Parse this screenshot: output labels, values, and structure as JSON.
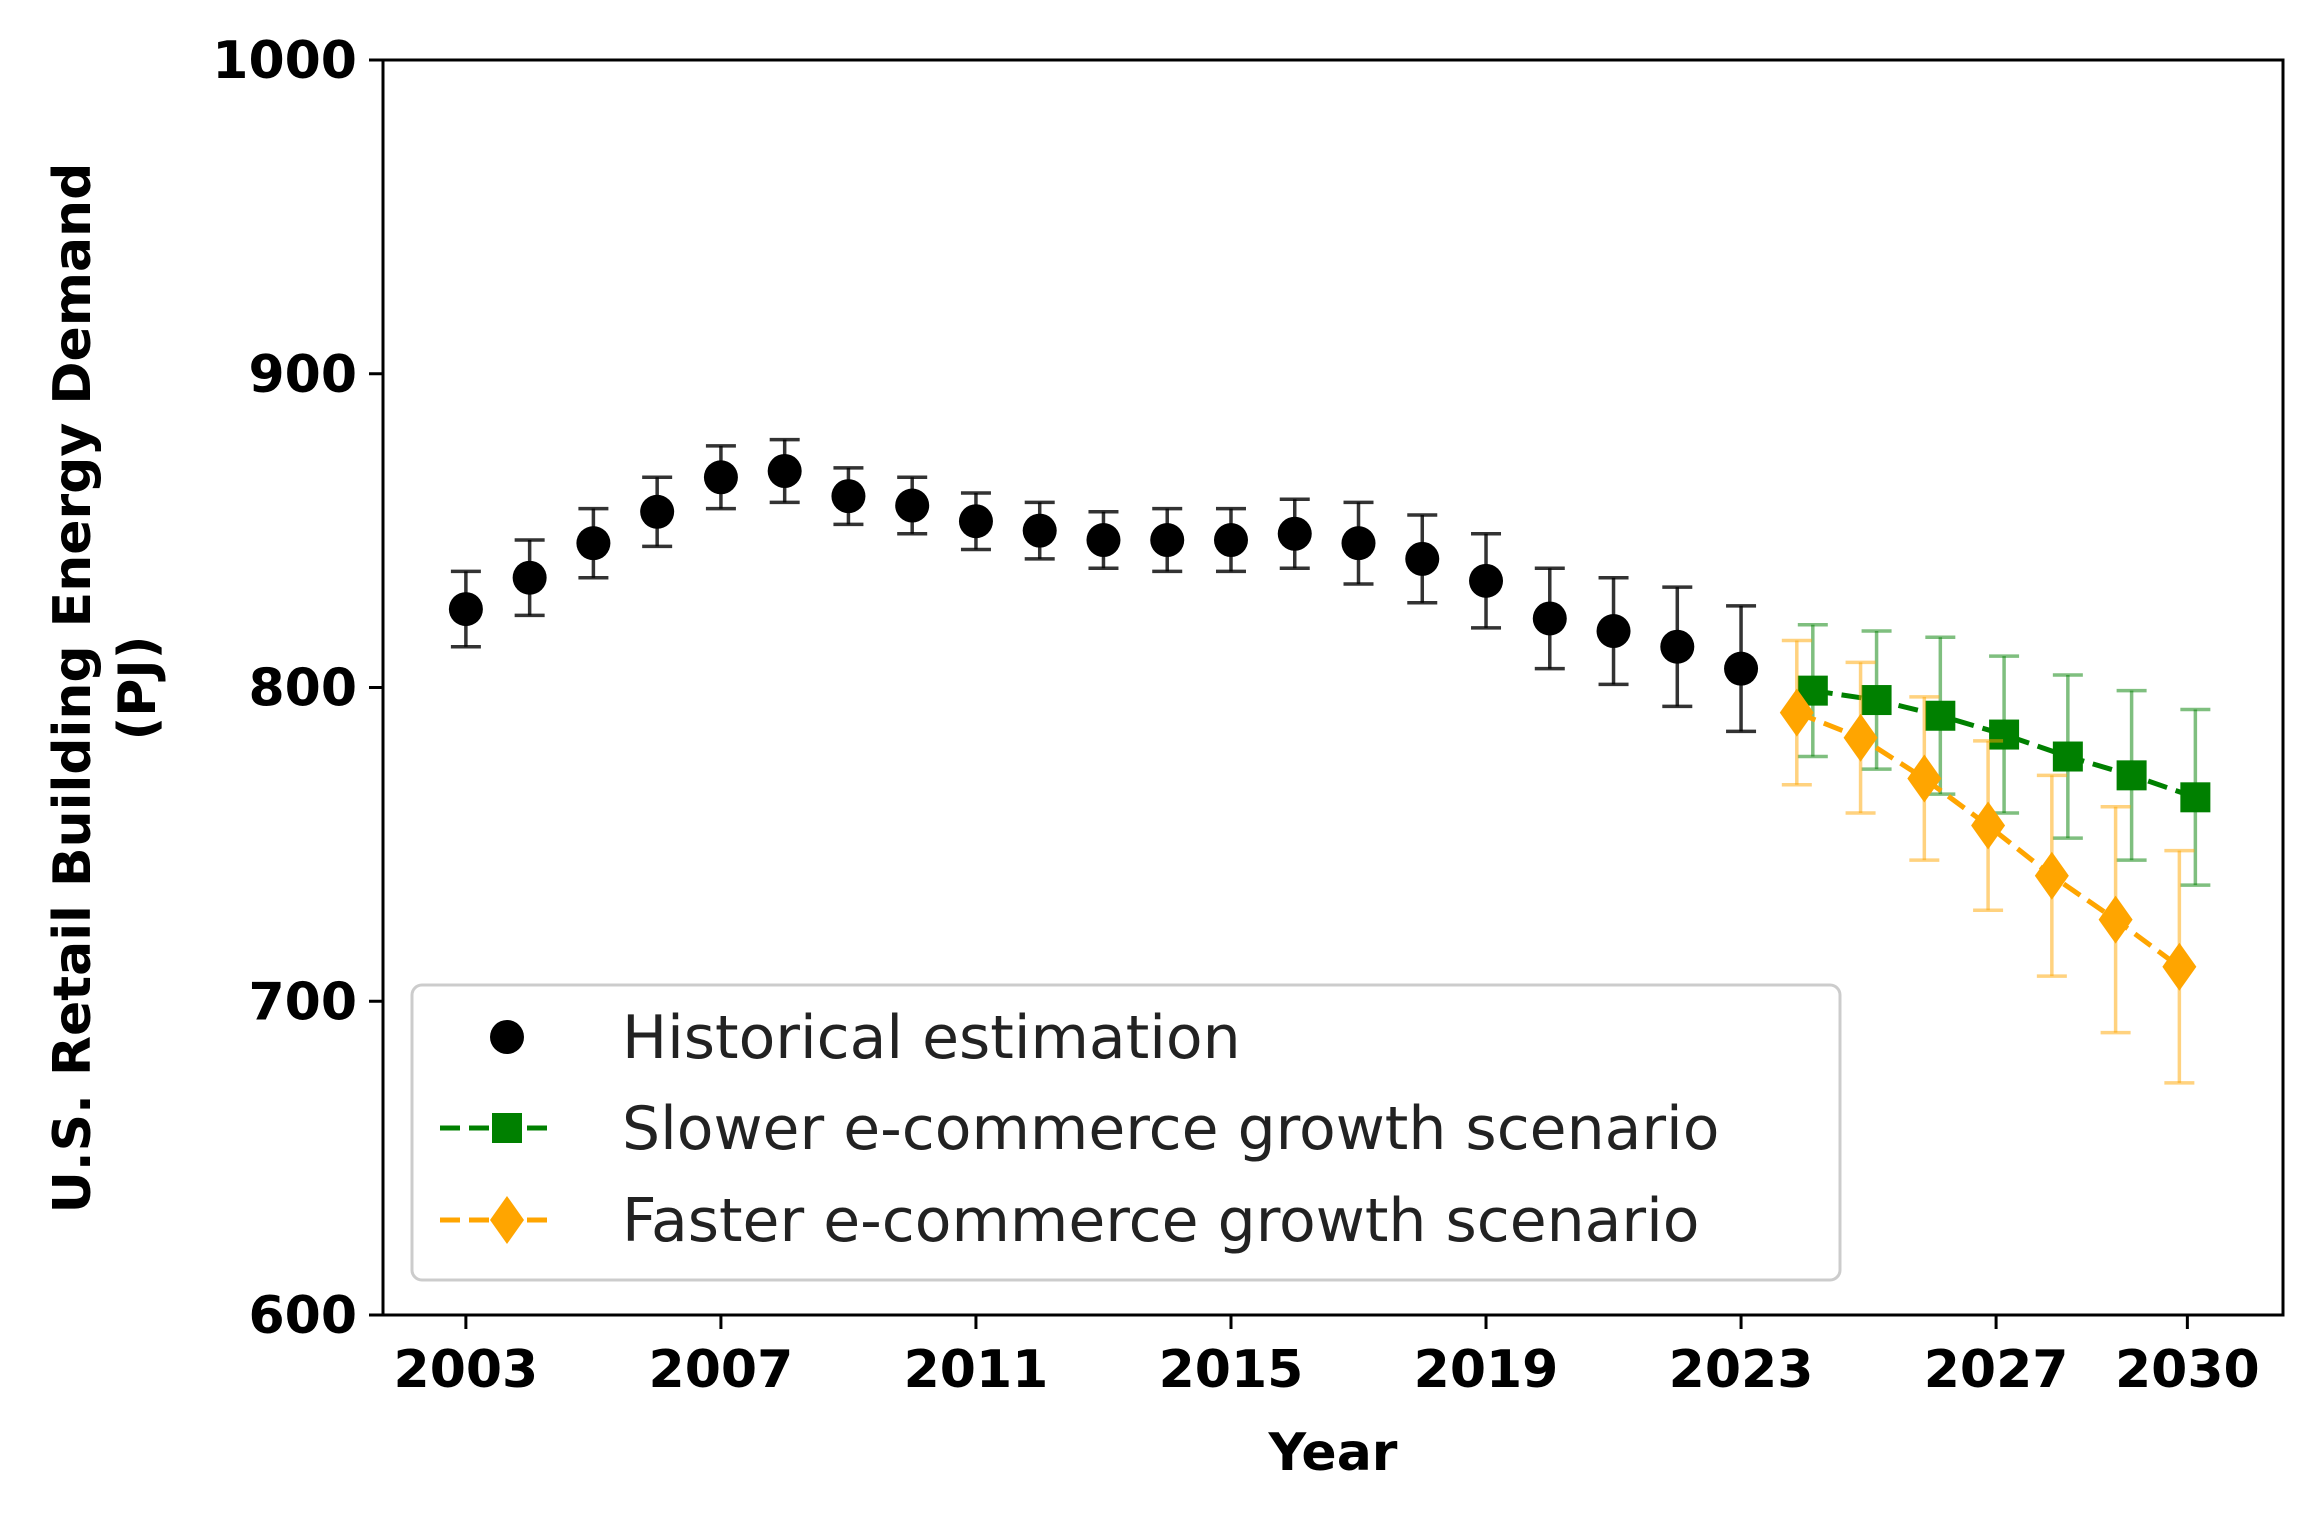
{
  "chart_data": {
    "type": "scatter",
    "xlabel": "Year",
    "ylabel_line1": "U.S. Retail Building Energy Demand",
    "ylabel_line2": "(PJ)",
    "xlim": [
      2001.7,
      2031.5
    ],
    "ylim": [
      600,
      1000
    ],
    "xticks": [
      2003,
      2007,
      2011,
      2015,
      2019,
      2023,
      2027,
      2030
    ],
    "yticks": [
      600,
      700,
      800,
      900,
      1000
    ],
    "legend_position": "lower-left",
    "series": [
      {
        "name": "Historical estimation",
        "marker": "circle",
        "linestyle": "none",
        "color": "#000000",
        "x": [
          2003,
          2004,
          2005,
          2006,
          2007,
          2008,
          2009,
          2010,
          2011,
          2012,
          2013,
          2014,
          2015,
          2016,
          2017,
          2018,
          2019,
          2020,
          2021,
          2022,
          2023
        ],
        "y": [
          825,
          835,
          846,
          856,
          867,
          869,
          861,
          858,
          853,
          850,
          847,
          847,
          847,
          849,
          846,
          841,
          834,
          822,
          818,
          813,
          806
        ],
        "err": [
          12,
          12,
          11,
          11,
          10,
          10,
          9,
          9,
          9,
          9,
          9,
          10,
          10,
          11,
          13,
          14,
          15,
          16,
          17,
          19,
          20
        ]
      },
      {
        "name": "Slower e-commerce growth scenario",
        "marker": "square",
        "linestyle": "dashed",
        "color": "#008000",
        "x": [
          2024,
          2025,
          2026,
          2027,
          2028,
          2029,
          2030
        ],
        "y": [
          799,
          796,
          791,
          785,
          778,
          772,
          765
        ],
        "err": [
          21,
          22,
          25,
          25,
          26,
          27,
          28
        ]
      },
      {
        "name": "Faster e-commerce growth scenario",
        "marker": "diamond",
        "linestyle": "dashed",
        "color": "#FFA500",
        "x": [
          2024,
          2025,
          2026,
          2027,
          2028,
          2029,
          2030
        ],
        "y": [
          792,
          784,
          771,
          756,
          740,
          726,
          711
        ],
        "err": [
          23,
          24,
          26,
          27,
          32,
          36,
          37
        ]
      }
    ]
  }
}
